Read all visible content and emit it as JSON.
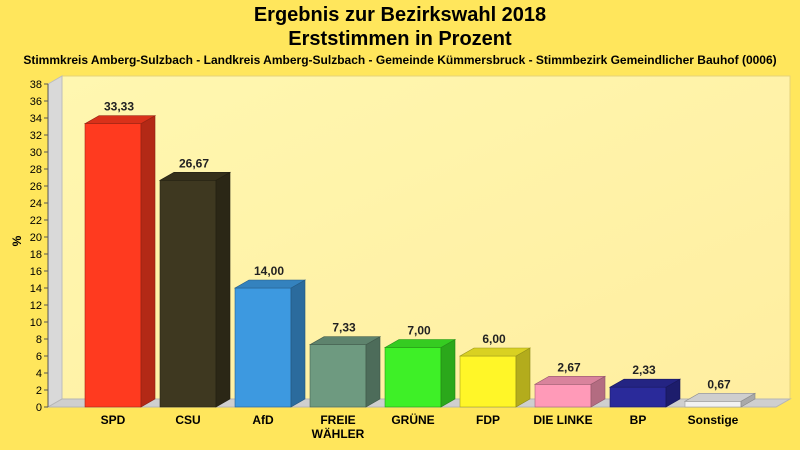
{
  "chart_data": {
    "type": "bar",
    "title": "Ergebnis zur Bezirkswahl 2018",
    "subtitle_line": "Erststimmen in Prozent",
    "subtitle": "Stimmkreis Amberg-Sulzbach - Landkreis Amberg-Sulzbach - Gemeinde Kümmersbruck - Stimmbezirk Gemeindlicher Bauhof (0006)",
    "ylabel": "%",
    "xlabel": "",
    "ylim": [
      0,
      38
    ],
    "ytick_step": 2,
    "grid": false,
    "categories": [
      [
        "SPD"
      ],
      [
        "CSU"
      ],
      [
        "AfD"
      ],
      [
        "FREIE",
        "WÄHLER"
      ],
      [
        "GRÜNE"
      ],
      [
        "FDP"
      ],
      [
        "DIE LINKE"
      ],
      [
        "BP"
      ],
      [
        "Sonstige"
      ]
    ],
    "values": [
      33.33,
      26.67,
      14.0,
      7.33,
      7.0,
      6.0,
      2.67,
      2.33,
      0.67
    ],
    "value_labels": [
      "33,33",
      "26,67",
      "14,00",
      "7,33",
      "7,00",
      "6,00",
      "2,67",
      "2,33",
      "0,67"
    ],
    "colors": [
      "#ff3a1f",
      "#3e3820",
      "#3d99e0",
      "#6e9a80",
      "#3ef027",
      "#fff628",
      "#ff9ab8",
      "#2a2a9a",
      "#f2f2f2"
    ]
  }
}
